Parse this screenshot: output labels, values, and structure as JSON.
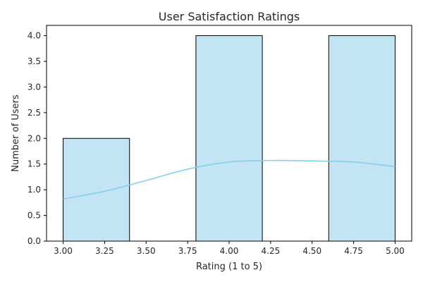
{
  "chart_data": {
    "type": "bar",
    "title": "User Satisfaction Ratings",
    "xlabel": "Rating (1 to 5)",
    "ylabel": "Number of Users",
    "xlim": [
      2.9,
      5.1
    ],
    "ylim": [
      0,
      4.2
    ],
    "xticks": [
      "3.00",
      "3.25",
      "3.50",
      "3.75",
      "4.00",
      "4.25",
      "4.50",
      "4.75",
      "5.00"
    ],
    "yticks": [
      "0.0",
      "0.5",
      "1.0",
      "1.5",
      "2.0",
      "2.5",
      "3.0",
      "3.5",
      "4.0"
    ],
    "bins": [
      {
        "start": 3.0,
        "end": 3.4,
        "count": 2
      },
      {
        "start": 3.4,
        "end": 3.8,
        "count": 0
      },
      {
        "start": 3.8,
        "end": 4.2,
        "count": 4
      },
      {
        "start": 4.2,
        "end": 4.6,
        "count": 0
      },
      {
        "start": 4.6,
        "end": 5.0,
        "count": 4
      }
    ],
    "kde": {
      "x": [
        3.0,
        3.25,
        3.5,
        3.75,
        4.0,
        4.25,
        4.5,
        4.75,
        5.0
      ],
      "y": [
        0.82,
        0.97,
        1.18,
        1.4,
        1.54,
        1.57,
        1.56,
        1.54,
        1.45
      ]
    },
    "grid": false,
    "colors": {
      "bar_fill": "#c2e4f3",
      "bar_edge": "#000000",
      "kde_line": "#87ceeb"
    }
  }
}
